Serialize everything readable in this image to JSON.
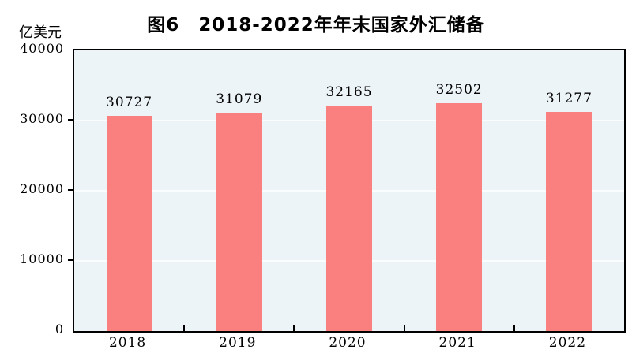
{
  "chart_data": {
    "type": "bar",
    "title": "图6　2018-2022年年末国家外汇储备",
    "unit_label": "亿美元",
    "categories": [
      "2018",
      "2019",
      "2020",
      "2021",
      "2022"
    ],
    "values": [
      30727,
      31079,
      32165,
      32502,
      31277
    ],
    "data_labels": [
      "30727",
      "31079",
      "32165",
      "32502",
      "31277"
    ],
    "xlabel": "",
    "ylabel": "亿美元",
    "ylim": [
      0,
      40000
    ],
    "yticks": [
      0,
      10000,
      20000,
      30000,
      40000
    ],
    "ytick_labels": [
      "0",
      "10000",
      "20000",
      "30000",
      "40000"
    ],
    "grid": "horizontal",
    "legend": "none",
    "colors": {
      "bar_fill": "#FA7F7F",
      "plot_background": "#EDF4F8",
      "gridline": "#FAFDFE",
      "axis": "#000000",
      "text": "#000000",
      "page_background": "#FFFFFF"
    }
  }
}
